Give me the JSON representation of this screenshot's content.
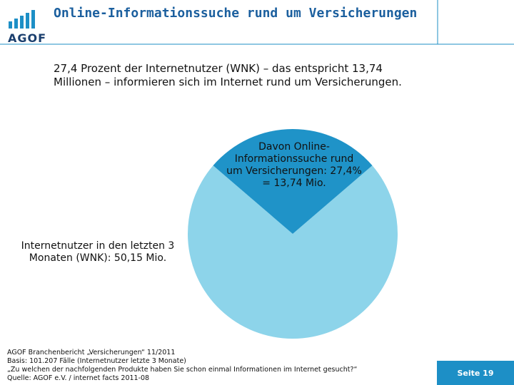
{
  "header": {
    "title": "Online-Informationssuche rund um Versicherungen",
    "logo": "AGOF"
  },
  "intro": "27,4 Prozent der Internetnutzer (WNK) – das entspricht 13,74 Millionen – informieren sich im Internet rund um Versicherungen.",
  "chart_data": {
    "type": "pie",
    "categories": [
      "Davon Online-Informationssuche rund um Versicherungen: 27,4% = 13,74 Mio.",
      "Internetnutzer in den letzten 3 Monaten (WNK): 50,15 Mio."
    ],
    "values": [
      27.4,
      72.6
    ],
    "colors": [
      "#1f93c8",
      "#8dd4ea"
    ]
  },
  "footer": {
    "lines": [
      "AGOF Branchenbericht „Versicherungen“ 11/2011",
      "Basis: 101.207 Fälle (Internetnutzer letzte 3 Monate)",
      "„Zu welchen der nachfolgenden Produkte haben Sie schon einmal Informationen im Internet gesucht?“",
      "Quelle: AGOF e.V. / internet facts 2011-08"
    ],
    "page": "Seite 19"
  }
}
